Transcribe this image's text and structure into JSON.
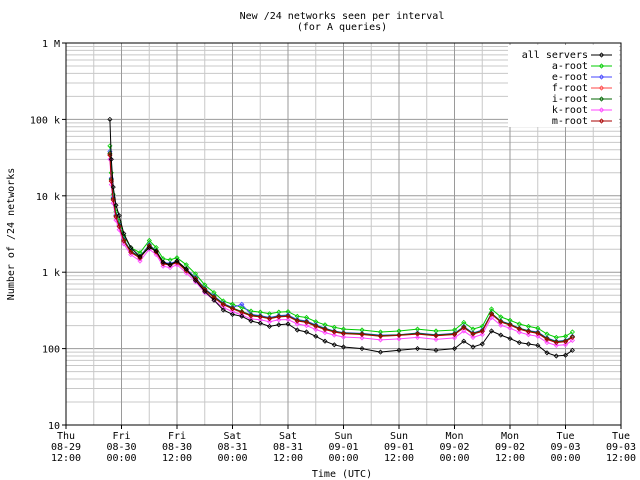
{
  "chart_data": {
    "type": "line",
    "title": "New /24 networks seen per interval",
    "subtitle": "(for A queries)",
    "xlabel": "Time (UTC)",
    "ylabel": "Number of /24 networks",
    "yscale": "log",
    "ylim": [
      10,
      1000000
    ],
    "xlim": [
      "2003-08-29 12:00",
      "2003-09-03 12:00"
    ],
    "grid": true,
    "legend_position": "top-right",
    "y_ticks": [
      {
        "value": 10,
        "label": "10"
      },
      {
        "value": 100,
        "label": "100"
      },
      {
        "value": 1000,
        "label": "1 k"
      },
      {
        "value": 10000,
        "label": "10 k"
      },
      {
        "value": 100000,
        "label": "100 k"
      },
      {
        "value": 1000000,
        "label": "1 M"
      }
    ],
    "x_ticks": [
      {
        "hours": 0,
        "day": "Thu",
        "date": "08-29",
        "time": "12:00"
      },
      {
        "hours": 12,
        "day": "Fri",
        "date": "08-30",
        "time": "00:00"
      },
      {
        "hours": 24,
        "day": "Fri",
        "date": "08-30",
        "time": "12:00"
      },
      {
        "hours": 36,
        "day": "Sat",
        "date": "08-31",
        "time": "00:00"
      },
      {
        "hours": 48,
        "day": "Sat",
        "date": "08-31",
        "time": "12:00"
      },
      {
        "hours": 60,
        "day": "Sun",
        "date": "09-01",
        "time": "00:00"
      },
      {
        "hours": 72,
        "day": "Sun",
        "date": "09-01",
        "time": "12:00"
      },
      {
        "hours": 84,
        "day": "Mon",
        "date": "09-02",
        "time": "00:00"
      },
      {
        "hours": 96,
        "day": "Mon",
        "date": "09-02",
        "time": "12:00"
      },
      {
        "hours": 108,
        "day": "Tue",
        "date": "09-03",
        "time": "00:00"
      },
      {
        "hours": 120,
        "day": "Tue",
        "date": "09-03",
        "time": "12:00"
      }
    ],
    "x": [
      9.5,
      9.8,
      10.2,
      10.8,
      11.5,
      12.5,
      14,
      16,
      18,
      19.5,
      21,
      22.5,
      24,
      26,
      28,
      30,
      32,
      34,
      36,
      38,
      40,
      42,
      44,
      46,
      48,
      50,
      52,
      54,
      56,
      58,
      60,
      64,
      68,
      72,
      76,
      80,
      84,
      86,
      88,
      90,
      92,
      94,
      96,
      98,
      100,
      102,
      104,
      106,
      108,
      109.5
    ],
    "series": [
      {
        "name": "all servers",
        "color": "#000000",
        "values": [
          100000,
          30000,
          13000,
          7500,
          5500,
          3200,
          2100,
          1600,
          2100,
          1900,
          1350,
          1250,
          1400,
          1100,
          780,
          560,
          430,
          320,
          280,
          265,
          230,
          215,
          195,
          205,
          210,
          175,
          165,
          145,
          125,
          112,
          105,
          100,
          90,
          95,
          100,
          95,
          100,
          125,
          105,
          115,
          170,
          150,
          135,
          120,
          115,
          110,
          88,
          80,
          82,
          95
        ]
      },
      {
        "name": "a-root",
        "color": "#00cc00",
        "values": [
          45000,
          20000,
          10500,
          6200,
          4600,
          3000,
          2100,
          1800,
          2600,
          2100,
          1500,
          1450,
          1550,
          1250,
          950,
          680,
          540,
          420,
          380,
          345,
          310,
          300,
          285,
          300,
          305,
          265,
          255,
          225,
          205,
          190,
          180,
          175,
          165,
          170,
          180,
          170,
          175,
          220,
          180,
          195,
          330,
          260,
          235,
          210,
          195,
          185,
          155,
          140,
          145,
          165
        ]
      },
      {
        "name": "e-root",
        "color": "#4444ff",
        "values": [
          38000,
          17000,
          9500,
          5600,
          4200,
          2700,
          1900,
          1600,
          2300,
          1900,
          1350,
          1300,
          1400,
          1100,
          850,
          610,
          490,
          390,
          345,
          380,
          280,
          270,
          255,
          270,
          275,
          240,
          230,
          205,
          185,
          170,
          162,
          158,
          150,
          152,
          160,
          152,
          158,
          195,
          160,
          175,
          290,
          230,
          210,
          185,
          172,
          165,
          138,
          125,
          128,
          145
        ]
      },
      {
        "name": "f-root",
        "color": "#ff4444",
        "values": [
          35000,
          16000,
          9000,
          5400,
          4000,
          2600,
          1850,
          1550,
          2200,
          1850,
          1300,
          1250,
          1350,
          1050,
          820,
          590,
          470,
          380,
          335,
          300,
          270,
          262,
          248,
          262,
          266,
          232,
          222,
          198,
          180,
          166,
          158,
          154,
          146,
          150,
          156,
          148,
          154,
          190,
          156,
          170,
          285,
          225,
          205,
          182,
          168,
          160,
          134,
          122,
          125,
          142
        ]
      },
      {
        "name": "i-root",
        "color": "#006600",
        "values": [
          36000,
          16500,
          9200,
          5500,
          4100,
          2650,
          1880,
          1580,
          2250,
          1880,
          1320,
          1270,
          1380,
          1080,
          830,
          600,
          480,
          385,
          340,
          305,
          275,
          265,
          250,
          265,
          268,
          235,
          225,
          200,
          182,
          168,
          160,
          156,
          148,
          151,
          158,
          150,
          156,
          192,
          158,
          172,
          288,
          228,
          208,
          184,
          170,
          162,
          136,
          123,
          126,
          143
        ]
      },
      {
        "name": "k-root",
        "color": "#ff44ff",
        "values": [
          30000,
          14000,
          8000,
          4800,
          3600,
          2350,
          1700,
          1400,
          2000,
          1700,
          1200,
          1150,
          1250,
          980,
          750,
          540,
          430,
          345,
          305,
          275,
          245,
          238,
          225,
          238,
          240,
          210,
          200,
          178,
          162,
          150,
          142,
          138,
          130,
          134,
          140,
          132,
          138,
          170,
          140,
          153,
          255,
          202,
          185,
          164,
          152,
          145,
          120,
          110,
          112,
          128
        ]
      },
      {
        "name": "m-root",
        "color": "#aa0000",
        "values": [
          34000,
          15500,
          8800,
          5300,
          3950,
          2550,
          1820,
          1530,
          2180,
          1830,
          1290,
          1240,
          1340,
          1040,
          815,
          585,
          465,
          375,
          332,
          298,
          268,
          260,
          246,
          260,
          264,
          230,
          220,
          196,
          178,
          165,
          157,
          153,
          145,
          149,
          155,
          147,
          153,
          188,
          155,
          168,
          282,
          222,
          203,
          180,
          166,
          158,
          132,
          120,
          123,
          140
        ]
      }
    ]
  }
}
